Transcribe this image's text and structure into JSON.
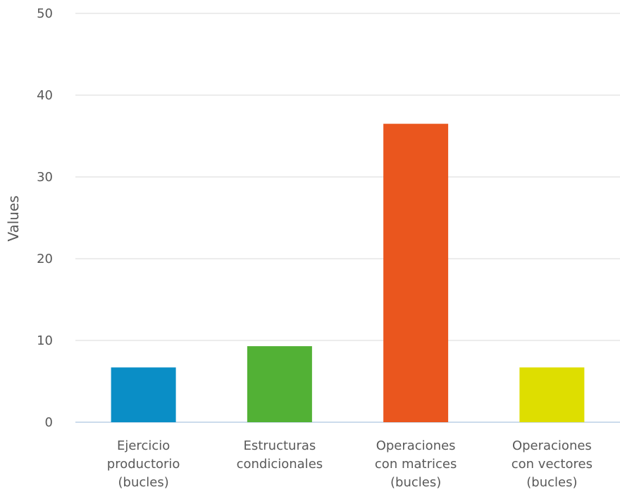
{
  "chart_data": {
    "type": "bar",
    "title": "",
    "xlabel": "",
    "ylabel": "Values",
    "ylim": [
      0,
      50
    ],
    "yticks": [
      0,
      10,
      20,
      30,
      40,
      50
    ],
    "grid": true,
    "legend": "none",
    "categories": [
      [
        "Ejercicio",
        "productorio",
        "(bucles)"
      ],
      [
        "Estructuras",
        "condicionales"
      ],
      [
        "Operaciones",
        "con matrices",
        "(bucles)"
      ],
      [
        "Operaciones",
        "con vectores",
        "(bucles)"
      ]
    ],
    "values": [
      6.7,
      9.3,
      36.5,
      6.7
    ],
    "colors": [
      "#0a8ec6",
      "#52b135",
      "#ea561e",
      "#dede00"
    ]
  }
}
